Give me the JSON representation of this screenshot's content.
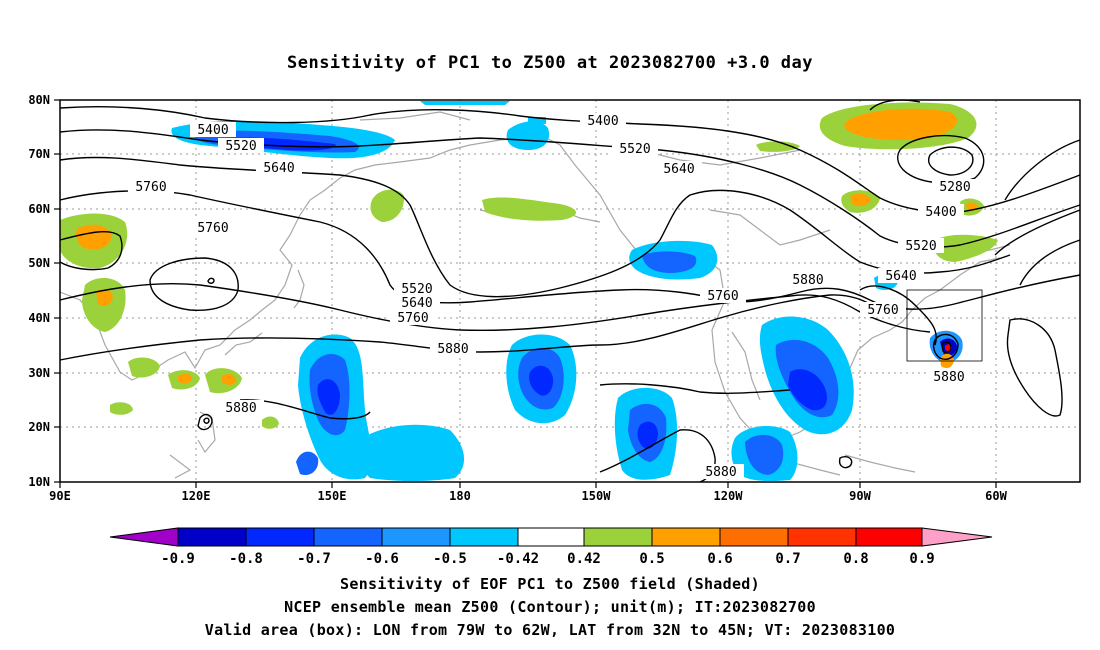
{
  "title": "Sensitivity of PC1 to Z500 at 2023082700 +3.0 day",
  "lat_ticks": [
    "80N",
    "70N",
    "60N",
    "50N",
    "40N",
    "30N",
    "20N",
    "10N"
  ],
  "lon_ticks": [
    "90E",
    "120E",
    "150E",
    "180",
    "150W",
    "120W",
    "90W",
    "60W"
  ],
  "contour_labels": {
    "c5400a": "5400",
    "c5520a": "5520",
    "c5640a": "5640",
    "c5760a": "5760",
    "c5760b": "5760",
    "c5400b": "5400",
    "c5520b": "5520",
    "c5640b": "5640",
    "c5520c": "5520",
    "c5640c": "5640",
    "c5760c": "5760",
    "c5880a": "5880",
    "c5760d": "5760",
    "c5880b": "5880",
    "c5280": "5280",
    "c5400c": "5400",
    "c5520d": "5520",
    "c5640d": "5640",
    "c5760e": "5760",
    "c5880c": "5880",
    "c5880d": "5880",
    "c5880e": "5880"
  },
  "colorbar": {
    "labels": [
      "-0.9",
      "-0.8",
      "-0.7",
      "-0.6",
      "-0.5",
      "-0.42",
      "0.42",
      "0.5",
      "0.6",
      "0.7",
      "0.8",
      "0.9"
    ],
    "colors": [
      "#a000c8",
      "#0000c8",
      "#0028ff",
      "#1464ff",
      "#1e96ff",
      "#00c8ff",
      "#ffffff",
      "#9bd23c",
      "#ffa000",
      "#ff6e00",
      "#ff3200",
      "#ff0000",
      "#ffa0c8"
    ]
  },
  "captions": {
    "line1": "Sensitivity of EOF PC1 to Z500 field (Shaded)",
    "line2": "NCEP ensemble mean Z500 (Contour); unit(m); IT:2023082700",
    "line3": "Valid area (box): LON from 79W to 62W, LAT from 32N to 45N; VT: 2023083100"
  }
}
